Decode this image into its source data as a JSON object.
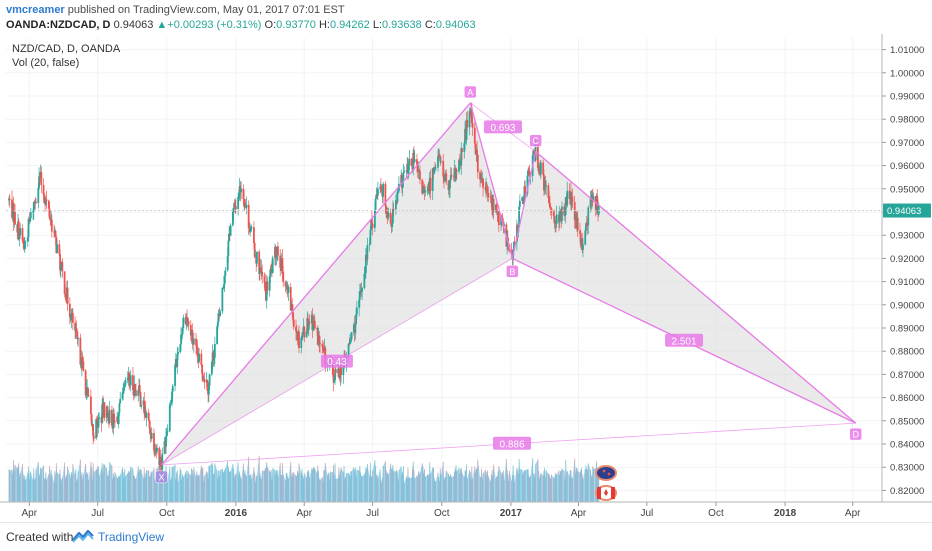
{
  "header": {
    "author": "vmcreamer",
    "publish_text": "published on TradingView.com, May 01, 2017 07:01 EST",
    "symbol": "OANDA:NZDCAD, D",
    "last": "0.94063",
    "change_arrow": "▲",
    "change": "+0.00293 (+0.31%)",
    "open_label": "O:",
    "open": "0.93770",
    "high_label": "H:",
    "high": "0.94262",
    "low_label": "L:",
    "low": "0.93638",
    "close_label": "C:",
    "close": "0.94063"
  },
  "legend": {
    "series_title": "NZD/CAD, D, OANDA",
    "volume_title": "Vol (20, false)"
  },
  "footer": {
    "created_with": "Created with",
    "brand": "TradingView"
  },
  "chart_data": {
    "type": "candlestick",
    "ylim": [
      0.815,
      1.015
    ],
    "y_ticks": [
      "1.01000",
      "1.00000",
      "0.99000",
      "0.98000",
      "0.97000",
      "0.96000",
      "0.95000",
      "0.94000",
      "0.93000",
      "0.92000",
      "0.91000",
      "0.90000",
      "0.89000",
      "0.88000",
      "0.87000",
      "0.86000",
      "0.85000",
      "0.84000",
      "0.83000",
      "0.82000"
    ],
    "x_ticks": [
      {
        "label": "Apr",
        "date": "2015-04-01",
        "bold": false
      },
      {
        "label": "Jul",
        "date": "2015-07-01",
        "bold": false
      },
      {
        "label": "Oct",
        "date": "2015-10-01",
        "bold": false
      },
      {
        "label": "2016",
        "date": "2016-01-01",
        "bold": true
      },
      {
        "label": "Apr",
        "date": "2016-04-01",
        "bold": false
      },
      {
        "label": "Jul",
        "date": "2016-07-01",
        "bold": false
      },
      {
        "label": "Oct",
        "date": "2016-10-01",
        "bold": false
      },
      {
        "label": "2017",
        "date": "2017-01-01",
        "bold": true
      },
      {
        "label": "Apr",
        "date": "2017-04-01",
        "bold": false
      },
      {
        "label": "Jul",
        "date": "2017-07-01",
        "bold": false
      },
      {
        "label": "Oct",
        "date": "2017-10-01",
        "bold": false
      },
      {
        "label": "2018",
        "date": "2018-01-01",
        "bold": true
      },
      {
        "label": "Apr",
        "date": "2018-04-01",
        "bold": false
      }
    ],
    "last_price": {
      "value": 0.94063,
      "label": "0.94063",
      "color": "#26a69a"
    },
    "price_path": [
      {
        "date": "2015-03-05",
        "price": 0.945
      },
      {
        "date": "2015-03-25",
        "price": 0.925
      },
      {
        "date": "2015-04-15",
        "price": 0.955
      },
      {
        "date": "2015-05-01",
        "price": 0.935
      },
      {
        "date": "2015-05-20",
        "price": 0.905
      },
      {
        "date": "2015-06-10",
        "price": 0.875
      },
      {
        "date": "2015-06-25",
        "price": 0.845
      },
      {
        "date": "2015-07-10",
        "price": 0.855
      },
      {
        "date": "2015-07-25",
        "price": 0.848
      },
      {
        "date": "2015-08-10",
        "price": 0.868
      },
      {
        "date": "2015-08-25",
        "price": 0.862
      },
      {
        "date": "2015-09-10",
        "price": 0.845
      },
      {
        "date": "2015-09-24",
        "price": 0.831
      },
      {
        "date": "2015-10-10",
        "price": 0.868
      },
      {
        "date": "2015-10-25",
        "price": 0.897
      },
      {
        "date": "2015-11-10",
        "price": 0.878
      },
      {
        "date": "2015-11-25",
        "price": 0.865
      },
      {
        "date": "2015-12-10",
        "price": 0.895
      },
      {
        "date": "2015-12-25",
        "price": 0.935
      },
      {
        "date": "2016-01-08",
        "price": 0.952
      },
      {
        "date": "2016-01-25",
        "price": 0.925
      },
      {
        "date": "2016-02-10",
        "price": 0.905
      },
      {
        "date": "2016-02-25",
        "price": 0.925
      },
      {
        "date": "2016-03-10",
        "price": 0.905
      },
      {
        "date": "2016-03-25",
        "price": 0.885
      },
      {
        "date": "2016-04-10",
        "price": 0.895
      },
      {
        "date": "2016-04-25",
        "price": 0.88
      },
      {
        "date": "2016-05-10",
        "price": 0.868
      },
      {
        "date": "2016-05-25",
        "price": 0.875
      },
      {
        "date": "2016-06-10",
        "price": 0.895
      },
      {
        "date": "2016-06-25",
        "price": 0.925
      },
      {
        "date": "2016-07-10",
        "price": 0.955
      },
      {
        "date": "2016-07-25",
        "price": 0.935
      },
      {
        "date": "2016-08-10",
        "price": 0.955
      },
      {
        "date": "2016-08-25",
        "price": 0.962
      },
      {
        "date": "2016-09-10",
        "price": 0.945
      },
      {
        "date": "2016-09-25",
        "price": 0.965
      },
      {
        "date": "2016-10-10",
        "price": 0.95
      },
      {
        "date": "2016-10-25",
        "price": 0.96
      },
      {
        "date": "2016-11-08",
        "price": 0.986
      },
      {
        "date": "2016-11-20",
        "price": 0.955
      },
      {
        "date": "2016-12-05",
        "price": 0.945
      },
      {
        "date": "2016-12-20",
        "price": 0.935
      },
      {
        "date": "2017-01-03",
        "price": 0.92
      },
      {
        "date": "2017-01-15",
        "price": 0.945
      },
      {
        "date": "2017-02-03",
        "price": 0.966
      },
      {
        "date": "2017-02-20",
        "price": 0.945
      },
      {
        "date": "2017-03-05",
        "price": 0.935
      },
      {
        "date": "2017-03-20",
        "price": 0.948
      },
      {
        "date": "2017-04-05",
        "price": 0.925
      },
      {
        "date": "2017-04-20",
        "price": 0.948
      },
      {
        "date": "2017-04-28",
        "price": 0.941
      }
    ],
    "pattern": {
      "name": "bat",
      "points": [
        {
          "label": "X",
          "date": "2015-09-24",
          "price": 0.831
        },
        {
          "label": "A",
          "date": "2016-11-08",
          "price": 0.987
        },
        {
          "label": "B",
          "date": "2017-01-03",
          "price": 0.92
        },
        {
          "label": "C",
          "date": "2017-02-03",
          "price": 0.966
        },
        {
          "label": "D",
          "date": "2018-04-05",
          "price": 0.849
        }
      ],
      "ratios": [
        {
          "label": "0.43",
          "between": [
            "X",
            "B"
          ]
        },
        {
          "label": "0.693",
          "between": [
            "A",
            "C"
          ]
        },
        {
          "label": "2.501",
          "between": [
            "B",
            "D"
          ]
        },
        {
          "label": "0.886",
          "between": [
            "X",
            "D"
          ]
        }
      ],
      "color": "#e879e8"
    },
    "colors": {
      "up": "#26a69a",
      "down": "#ef5350",
      "volume_fill": "#63b6e4",
      "pattern": "#e879e8",
      "pattern_fill": "#d8d8d8"
    }
  }
}
